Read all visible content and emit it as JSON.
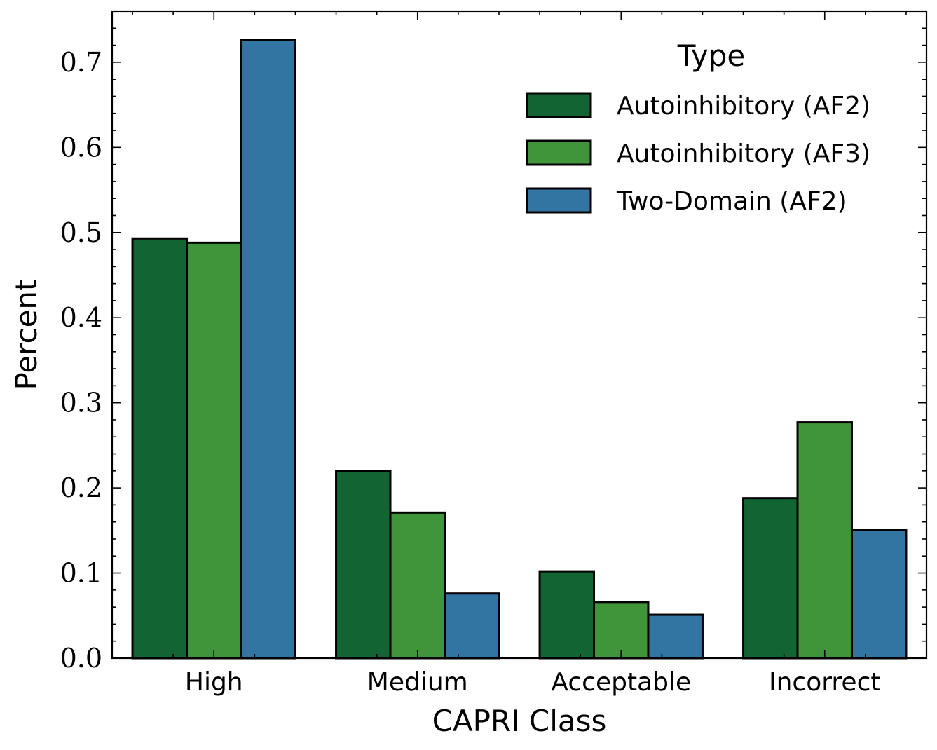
{
  "chart_data": {
    "type": "bar",
    "categories": [
      "High",
      "Medium",
      "Acceptable",
      "Incorrect"
    ],
    "series": [
      {
        "name": "Autoinhibitory (AF2)",
        "color": "#136433",
        "values": [
          0.493,
          0.22,
          0.102,
          0.188
        ]
      },
      {
        "name": "Autoinhibitory (AF3)",
        "color": "#40953a",
        "values": [
          0.488,
          0.171,
          0.066,
          0.277
        ]
      },
      {
        "name": "Two-Domain (AF2)",
        "color": "#3274a2",
        "values": [
          0.726,
          0.076,
          0.051,
          0.151
        ]
      }
    ],
    "xlabel": "CAPRI Class",
    "ylabel": "Percent",
    "ylim": [
      0,
      0.76
    ],
    "yticks": [
      "0.0",
      "0.1",
      "0.2",
      "0.3",
      "0.4",
      "0.5",
      "0.6",
      "0.7"
    ],
    "legend": {
      "title": "Type",
      "position": "top-right"
    },
    "grid": false
  }
}
